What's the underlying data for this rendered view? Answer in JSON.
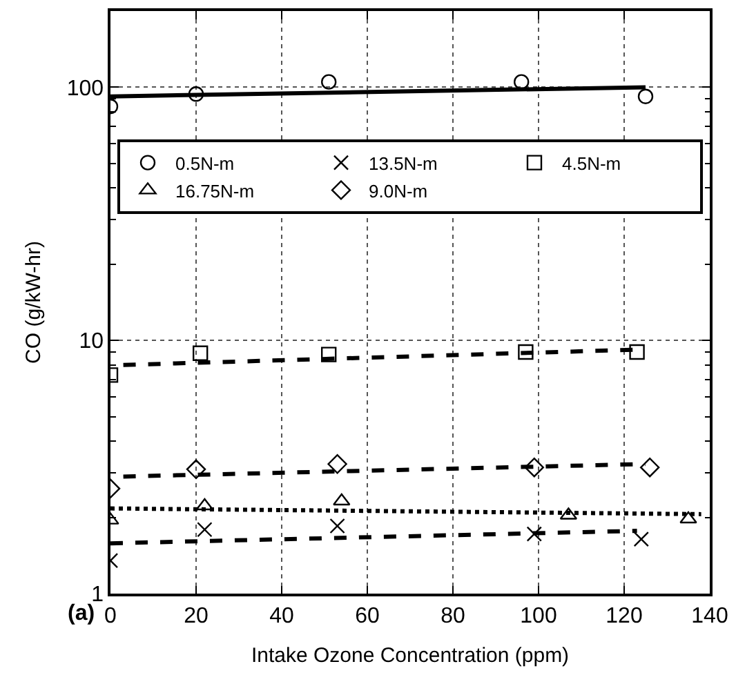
{
  "chart_data": {
    "type": "scatter",
    "xlabel": "Intake Ozone Concentration (ppm)",
    "ylabel": "CO (g/kW-hr)",
    "annotations": [
      "(a)"
    ],
    "log": "y",
    "grid": true,
    "legend": "top",
    "xlim": [
      0,
      140
    ],
    "xticks": [
      0,
      20,
      40,
      60,
      80,
      100,
      120,
      140
    ],
    "ylim": [
      1,
      200
    ],
    "yticks": [
      1,
      {
        "value": 2,
        "label": null
      },
      {
        "value": 3,
        "label": null
      },
      {
        "value": 4,
        "label": null
      },
      {
        "value": 5,
        "label": null
      },
      {
        "value": 6,
        "label": null
      },
      {
        "value": 7,
        "label": null
      },
      {
        "value": 8,
        "label": null
      },
      {
        "value": 9,
        "label": null
      },
      10,
      {
        "value": 20,
        "label": null
      },
      {
        "value": 30,
        "label": null
      },
      {
        "value": 40,
        "label": null
      },
      {
        "value": 50,
        "label": null
      },
      {
        "value": 60,
        "label": null
      },
      {
        "value": 70,
        "label": null
      },
      {
        "value": 80,
        "label": null
      },
      {
        "value": 90,
        "label": null
      },
      100,
      {
        "value": 200,
        "label": null
      }
    ],
    "series": [
      {
        "name": "0.5N-m",
        "color": "#000000",
        "marker": "circle",
        "x": [
          0,
          20,
          51,
          96,
          125
        ],
        "values": [
          84,
          94,
          105,
          105,
          92
        ]
      },
      {
        "name": "13.5N-m",
        "color": "#000000",
        "marker": "cross",
        "x": [
          0,
          22,
          53,
          99,
          124
        ],
        "values": [
          1.35,
          1.79,
          1.85,
          1.72,
          1.64
        ]
      },
      {
        "name": "4.5N-m",
        "color": "#000000",
        "marker": "square",
        "x": [
          0,
          21,
          51,
          97,
          123
        ],
        "values": [
          7.3,
          8.9,
          8.8,
          9.0,
          9.0
        ]
      },
      {
        "name": "16.75N-m",
        "color": "#000000",
        "marker": "triangle",
        "x": [
          0,
          22,
          54,
          107,
          135
        ],
        "values": [
          1.95,
          2.22,
          2.32,
          2.04,
          1.97
        ]
      },
      {
        "name": "9.0N-m",
        "color": "#000000",
        "marker": "diamond",
        "x": [
          0,
          20,
          53,
          99,
          126
        ],
        "values": [
          2.6,
          3.1,
          3.25,
          3.15,
          3.15
        ]
      },
      {
        "type": "line",
        "color": "#000000",
        "line_style": "solid",
        "x": [
          0,
          125
        ],
        "values": [
          92,
          100
        ]
      },
      {
        "type": "line",
        "color": "#000000",
        "line_style": "dashed",
        "x": [
          3,
          123
        ],
        "values": [
          8.0,
          9.2
        ]
      },
      {
        "type": "line",
        "color": "#000000",
        "line_style": "dashed",
        "x": [
          3,
          125
        ],
        "values": [
          2.9,
          3.25
        ]
      },
      {
        "type": "line",
        "color": "#000000",
        "line_style": "dashed",
        "x": [
          0,
          123
        ],
        "values": [
          1.58,
          1.77
        ]
      },
      {
        "type": "line",
        "color": "#000000",
        "line_style": "dotted",
        "x": [
          0,
          138
        ],
        "values": [
          2.17,
          2.06
        ]
      }
    ]
  }
}
